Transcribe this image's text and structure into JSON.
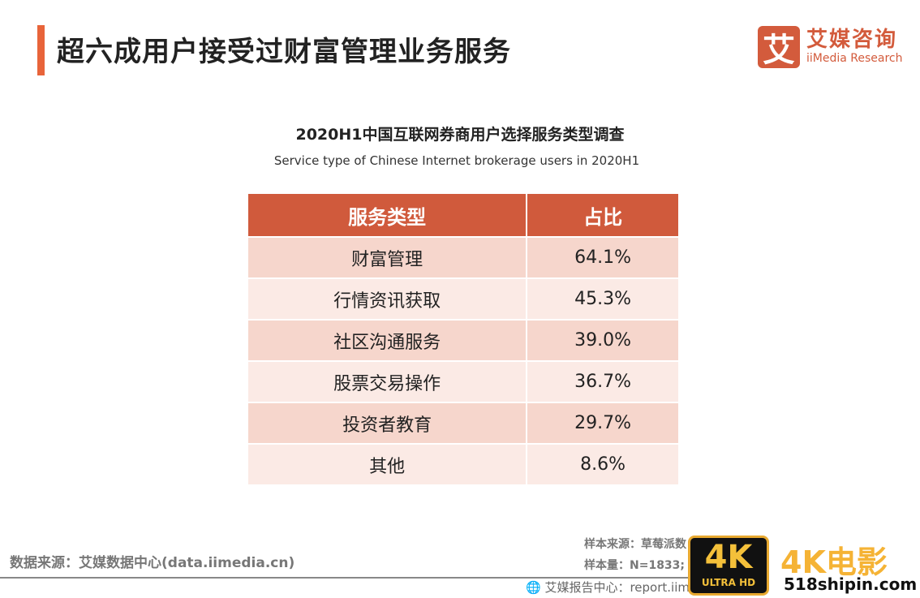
{
  "header": {
    "title": "超六成用户接受过财富管理业务服务"
  },
  "logo": {
    "mark": "艾",
    "cn": "艾媒咨询",
    "en": "iiMedia Research"
  },
  "chart": {
    "title": "2020H1中国互联网券商用户选择服务类型调查",
    "subtitle": "Service type of Chinese Internet brokerage users in 2020H1"
  },
  "table": {
    "headers": [
      "服务类型",
      "占比"
    ],
    "rows": [
      {
        "type": "财富管理",
        "share": "64.1%"
      },
      {
        "type": "行情资讯获取",
        "share": "45.3%"
      },
      {
        "type": "社区沟通服务",
        "share": "39.0%"
      },
      {
        "type": "股票交易操作",
        "share": "36.7%"
      },
      {
        "type": "投资者教育",
        "share": "29.7%"
      },
      {
        "type": "其他",
        "share": "8.6%"
      }
    ]
  },
  "footer": {
    "source": "数据来源：艾媒数据中心(data.iimedia.cn)",
    "sample_source": "样本来源：草莓派数",
    "sample_size": "样本量：N=1833;",
    "report": "艾媒报告中心：report.iim"
  },
  "watermark": {
    "badge": "4K",
    "badge_sub": "ULTRA HD",
    "title": "4K电影",
    "site": "518shipin.com"
  }
}
